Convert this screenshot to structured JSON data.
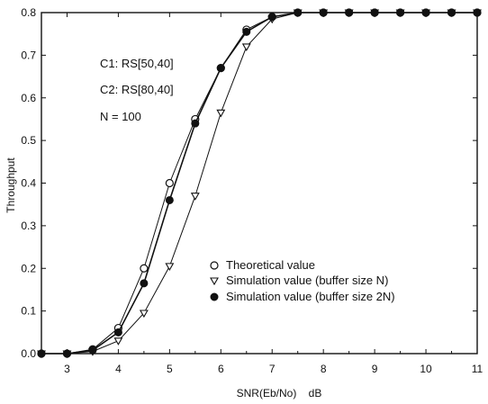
{
  "chart_data": {
    "type": "line",
    "xlabel": "SNR(Eb/No)    dB",
    "ylabel": "Throughput",
    "xlim": [
      2.5,
      11
    ],
    "ylim": [
      0,
      0.8
    ],
    "xticks": [
      3,
      4,
      5,
      6,
      7,
      8,
      9,
      10,
      11
    ],
    "yticks": [
      0.0,
      0.1,
      0.2,
      0.3,
      0.4,
      0.5,
      0.6,
      0.7,
      0.8
    ],
    "ytick_labels": [
      "0.0",
      "0.1",
      "0.2",
      "0.3",
      "0.4",
      "0.5",
      "0.6",
      "0.7",
      "0.8"
    ],
    "annotations": [
      "C1: RS[50,40]",
      "C2: RS[80,40]",
      "N = 100"
    ],
    "legend_position": "lower-right",
    "grid": false,
    "series": [
      {
        "name": "Theoretical value",
        "marker": "open-circle",
        "x": [
          2.5,
          3,
          3.5,
          4,
          4.5,
          5,
          5.5,
          6,
          6.5,
          7,
          7.5,
          8,
          8.5,
          9,
          9.5,
          10,
          10.5,
          11
        ],
        "y": [
          0.0,
          0.0,
          0.01,
          0.06,
          0.2,
          0.4,
          0.55,
          0.67,
          0.76,
          0.79,
          0.8,
          0.8,
          0.8,
          0.8,
          0.8,
          0.8,
          0.8,
          0.8
        ]
      },
      {
        "name": "Simulation value (buffer size N)",
        "marker": "open-triangle-down",
        "x": [
          2.5,
          3,
          3.5,
          4,
          4.5,
          5,
          5.5,
          6,
          6.5,
          7,
          7.5,
          8,
          8.5,
          9,
          9.5,
          10,
          10.5,
          11
        ],
        "y": [
          0.0,
          0.0,
          0.005,
          0.03,
          0.095,
          0.205,
          0.37,
          0.565,
          0.72,
          0.785,
          0.8,
          0.8,
          0.8,
          0.8,
          0.8,
          0.8,
          0.8,
          0.8
        ]
      },
      {
        "name": "Simulation value (buffer size 2N)",
        "marker": "filled-circle",
        "x": [
          2.5,
          3,
          3.5,
          4,
          4.5,
          5,
          5.5,
          6,
          6.5,
          7,
          7.5,
          8,
          8.5,
          9,
          9.5,
          10,
          10.5,
          11
        ],
        "y": [
          0.0,
          0.0,
          0.008,
          0.05,
          0.165,
          0.36,
          0.54,
          0.67,
          0.755,
          0.79,
          0.8,
          0.8,
          0.8,
          0.8,
          0.8,
          0.8,
          0.8,
          0.8
        ]
      }
    ],
    "colors": {
      "line": "#111111",
      "marker_fill": "#111111",
      "marker_open": "#ffffff"
    }
  }
}
